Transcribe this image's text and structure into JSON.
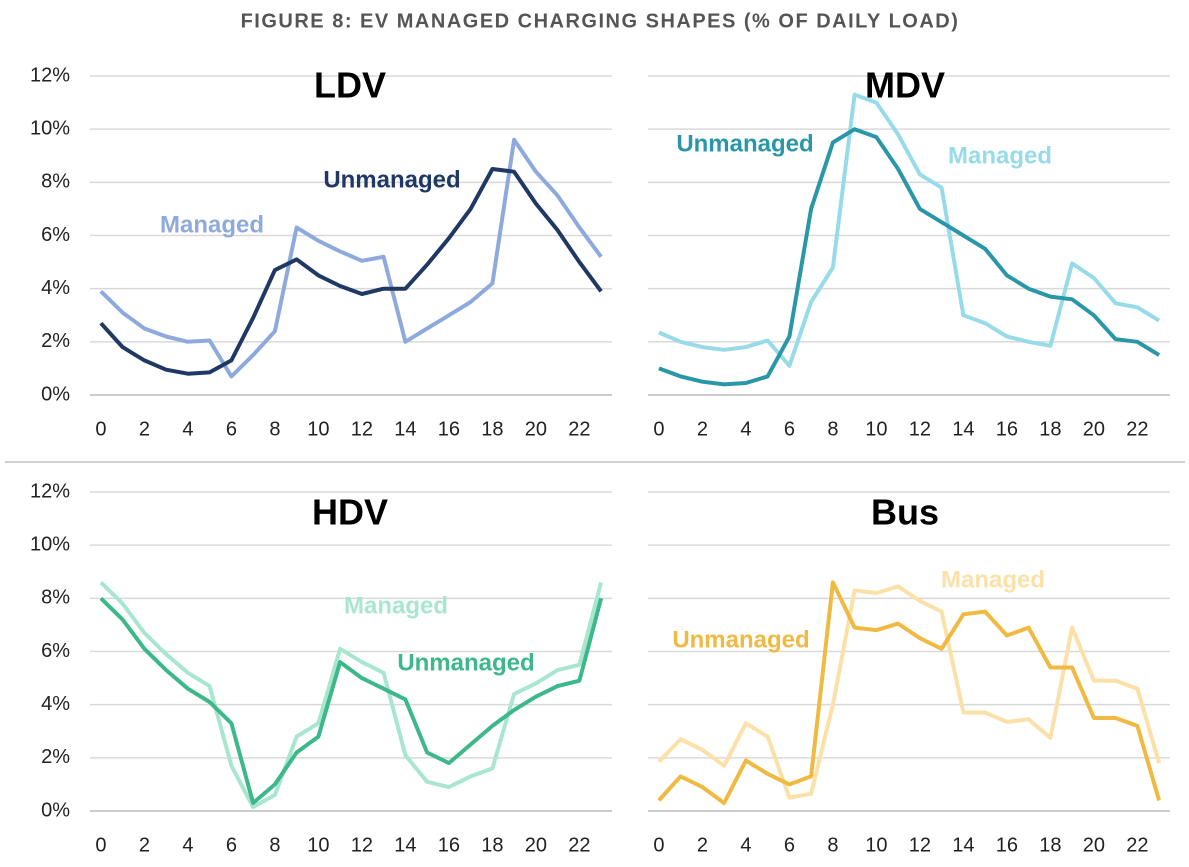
{
  "title": "FIGURE 8: EV MANAGED CHARGING SHAPES (% OF DAILY LOAD)",
  "chart_data": [
    {
      "type": "line",
      "title": "LDV",
      "x": [
        0,
        1,
        2,
        3,
        4,
        5,
        6,
        7,
        8,
        9,
        10,
        11,
        12,
        13,
        14,
        15,
        16,
        17,
        18,
        19,
        20,
        21,
        22,
        23
      ],
      "xlim": [
        -0.5,
        23.5
      ],
      "xticks": [
        0,
        2,
        4,
        6,
        8,
        10,
        12,
        14,
        16,
        18,
        20,
        22
      ],
      "ylim": [
        0,
        12
      ],
      "yticks": [
        {
          "value": 0,
          "label": "0%"
        },
        {
          "value": 2,
          "label": "2%"
        },
        {
          "value": 4,
          "label": "4%"
        },
        {
          "value": 6,
          "label": "6%"
        },
        {
          "value": 8,
          "label": "8%"
        },
        {
          "value": 10,
          "label": "10%"
        },
        {
          "value": 12,
          "label": "12%"
        }
      ],
      "grid": true,
      "series": [
        {
          "name": "Unmanaged",
          "color": "#1f3864",
          "values": [
            2.7,
            1.8,
            1.3,
            0.95,
            0.8,
            0.85,
            1.3,
            2.9,
            4.7,
            5.1,
            4.5,
            4.1,
            3.8,
            4.0,
            4.0,
            4.9,
            5.9,
            7.0,
            8.5,
            8.4,
            7.2,
            6.2,
            5.0,
            3.9
          ]
        },
        {
          "name": "Managed",
          "color": "#8eaadc",
          "values": [
            3.9,
            3.1,
            2.5,
            2.2,
            2.0,
            2.05,
            0.7,
            1.5,
            2.4,
            6.3,
            5.8,
            5.4,
            5.05,
            5.2,
            2.0,
            2.5,
            3.0,
            3.5,
            4.2,
            9.6,
            8.4,
            7.5,
            6.3,
            5.2
          ]
        }
      ]
    },
    {
      "type": "line",
      "title": "MDV",
      "x": [
        0,
        1,
        2,
        3,
        4,
        5,
        6,
        7,
        8,
        9,
        10,
        11,
        12,
        13,
        14,
        15,
        16,
        17,
        18,
        19,
        20,
        21,
        22,
        23
      ],
      "xlim": [
        -0.5,
        23.5
      ],
      "xticks": [
        0,
        2,
        4,
        6,
        8,
        10,
        12,
        14,
        16,
        18,
        20,
        22
      ],
      "ylim": [
        0,
        12
      ],
      "yticks": [
        0,
        2,
        4,
        6,
        8,
        10,
        12
      ],
      "grid": true,
      "series": [
        {
          "name": "Unmanaged",
          "color": "#2a97a8",
          "values": [
            1.0,
            0.7,
            0.5,
            0.4,
            0.45,
            0.7,
            2.2,
            7.0,
            9.5,
            10.0,
            9.7,
            8.5,
            7.0,
            6.5,
            6.0,
            5.5,
            4.5,
            4.0,
            3.7,
            3.6,
            3.0,
            2.1,
            2.0,
            1.5
          ]
        },
        {
          "name": "Managed",
          "color": "#97dbe8",
          "values": [
            2.35,
            2.0,
            1.8,
            1.7,
            1.8,
            2.05,
            1.1,
            3.5,
            4.8,
            11.3,
            11.0,
            9.8,
            8.3,
            7.8,
            3.0,
            2.7,
            2.2,
            2.0,
            1.85,
            4.95,
            4.4,
            3.45,
            3.3,
            2.8
          ]
        }
      ]
    },
    {
      "type": "line",
      "title": "HDV",
      "x": [
        0,
        1,
        2,
        3,
        4,
        5,
        6,
        7,
        8,
        9,
        10,
        11,
        12,
        13,
        14,
        15,
        16,
        17,
        18,
        19,
        20,
        21,
        22,
        23
      ],
      "xlim": [
        -0.5,
        23.5
      ],
      "xticks": [
        0,
        2,
        4,
        6,
        8,
        10,
        12,
        14,
        16,
        18,
        20,
        22
      ],
      "ylim": [
        0,
        12
      ],
      "yticks": [
        {
          "value": 0,
          "label": "0%"
        },
        {
          "value": 2,
          "label": "2%"
        },
        {
          "value": 4,
          "label": "4%"
        },
        {
          "value": 6,
          "label": "6%"
        },
        {
          "value": 8,
          "label": "8%"
        },
        {
          "value": 10,
          "label": "10%"
        },
        {
          "value": 12,
          "label": "12%"
        }
      ],
      "grid": true,
      "series": [
        {
          "name": "Unmanaged",
          "color": "#3cb88a",
          "values": [
            8.0,
            7.2,
            6.1,
            5.3,
            4.6,
            4.1,
            3.3,
            0.3,
            1.0,
            2.2,
            2.8,
            5.6,
            5.0,
            4.6,
            4.2,
            2.2,
            1.8,
            2.5,
            3.2,
            3.8,
            4.3,
            4.7,
            4.9,
            8.0
          ]
        },
        {
          "name": "Managed",
          "color": "#a8e6cf",
          "values": [
            8.6,
            7.8,
            6.7,
            5.9,
            5.2,
            4.7,
            1.7,
            0.15,
            0.6,
            2.8,
            3.3,
            6.1,
            5.6,
            5.2,
            2.1,
            1.1,
            0.9,
            1.3,
            1.6,
            4.4,
            4.8,
            5.3,
            5.5,
            8.6
          ]
        }
      ]
    },
    {
      "type": "line",
      "title": "Bus",
      "x": [
        0,
        1,
        2,
        3,
        4,
        5,
        6,
        7,
        8,
        9,
        10,
        11,
        12,
        13,
        14,
        15,
        16,
        17,
        18,
        19,
        20,
        21,
        22,
        23
      ],
      "xlim": [
        -0.5,
        23.5
      ],
      "xticks": [
        0,
        2,
        4,
        6,
        8,
        10,
        12,
        14,
        16,
        18,
        20,
        22
      ],
      "ylim": [
        0,
        12
      ],
      "yticks": [
        0,
        2,
        4,
        6,
        8,
        10,
        12
      ],
      "grid": true,
      "series": [
        {
          "name": "Unmanaged",
          "color": "#f0b941",
          "values": [
            0.4,
            1.3,
            0.9,
            0.3,
            1.9,
            1.4,
            1.0,
            1.3,
            8.6,
            6.9,
            6.8,
            7.05,
            6.5,
            6.1,
            7.4,
            7.5,
            6.6,
            6.9,
            5.4,
            5.4,
            3.5,
            3.5,
            3.2,
            0.4
          ]
        },
        {
          "name": "Managed",
          "color": "#fbe0a7",
          "values": [
            1.85,
            2.7,
            2.3,
            1.7,
            3.3,
            2.8,
            0.5,
            0.65,
            4.0,
            8.3,
            8.2,
            8.45,
            7.9,
            7.5,
            3.7,
            3.7,
            3.35,
            3.45,
            2.75,
            6.9,
            4.9,
            4.9,
            4.6,
            1.8
          ]
        }
      ]
    }
  ]
}
